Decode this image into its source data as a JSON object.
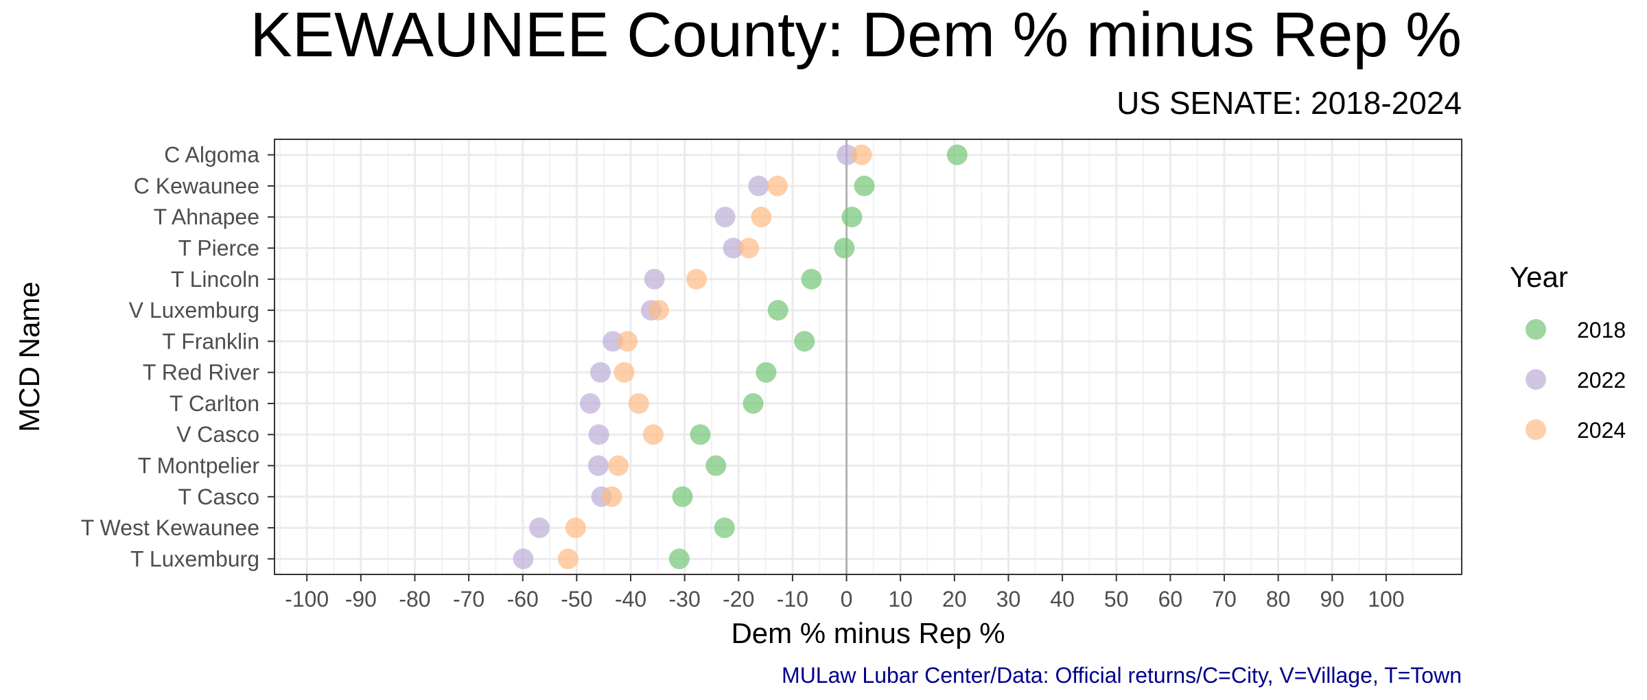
{
  "chart_data": {
    "type": "scatter",
    "title": "KEWAUNEE County: Dem % minus Rep %",
    "subtitle": "US SENATE: 2018-2024",
    "xlabel": "Dem % minus Rep %",
    "ylabel": "MCD Name",
    "caption": "MULaw Lubar Center/Data: Official returns/C=City, V=Village, T=Town",
    "xlim": [
      -106,
      114
    ],
    "x_ticks": [
      -100,
      -90,
      -80,
      -70,
      -60,
      -50,
      -40,
      -30,
      -20,
      -10,
      0,
      10,
      20,
      30,
      40,
      50,
      60,
      70,
      80,
      90,
      100
    ],
    "grid": true,
    "reference_line_x": 0,
    "categories": [
      "C Algoma",
      "C Kewaunee",
      "T Ahnapee",
      "T Pierce",
      "T Lincoln",
      "V Luxemburg",
      "T Franklin",
      "T Red River",
      "T Carlton",
      "V Casco",
      "T Montpelier",
      "T Casco",
      "T West Kewaunee",
      "T Luxemburg"
    ],
    "legend": {
      "title": "Year",
      "position": "right"
    },
    "series": [
      {
        "name": "2018",
        "color": "#74c476",
        "values": [
          20.5,
          3.3,
          1.0,
          -0.4,
          -6.5,
          -12.7,
          -7.8,
          -14.9,
          -17.3,
          -27.1,
          -24.2,
          -30.4,
          -22.6,
          -31.0
        ]
      },
      {
        "name": "2022",
        "color": "#bcaed8",
        "values": [
          0.1,
          -16.3,
          -22.5,
          -21.0,
          -35.6,
          -36.2,
          -43.3,
          -45.6,
          -47.5,
          -45.9,
          -46.0,
          -45.4,
          -56.9,
          -59.9
        ]
      },
      {
        "name": "2024",
        "color": "#fdbb84",
        "values": [
          2.8,
          -12.8,
          -15.8,
          -18.1,
          -27.8,
          -34.8,
          -40.6,
          -41.2,
          -38.5,
          -35.8,
          -42.3,
          -43.5,
          -50.2,
          -51.6
        ]
      }
    ]
  }
}
